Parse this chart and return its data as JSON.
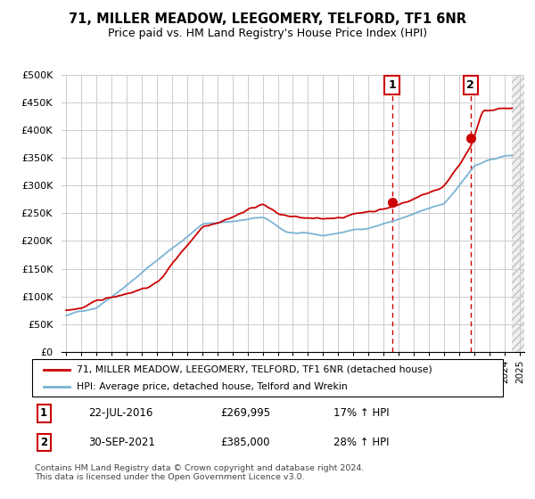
{
  "title": "71, MILLER MEADOW, LEEGOMERY, TELFORD, TF1 6NR",
  "subtitle": "Price paid vs. HM Land Registry's House Price Index (HPI)",
  "ylabel_ticks": [
    "£0",
    "£50K",
    "£100K",
    "£150K",
    "£200K",
    "£250K",
    "£300K",
    "£350K",
    "£400K",
    "£450K",
    "£500K"
  ],
  "ytick_values": [
    0,
    50000,
    100000,
    150000,
    200000,
    250000,
    300000,
    350000,
    400000,
    450000,
    500000
  ],
  "xlim_start": 1994.7,
  "xlim_end": 2025.3,
  "ylim": [
    0,
    500000
  ],
  "sale1": {
    "date_num": 2016.55,
    "price": 269995,
    "label": "1",
    "text": "22-JUL-2016",
    "pct": "17% ↑ HPI"
  },
  "sale2": {
    "date_num": 2021.75,
    "price": 385000,
    "label": "2",
    "text": "30-SEP-2021",
    "pct": "28% ↑ HPI"
  },
  "legend_red": "71, MILLER MEADOW, LEEGOMERY, TELFORD, TF1 6NR (detached house)",
  "legend_blue": "HPI: Average price, detached house, Telford and Wrekin",
  "footer": "Contains HM Land Registry data © Crown copyright and database right 2024.\nThis data is licensed under the Open Government Licence v3.0.",
  "red_color": "#cc0000",
  "blue_color": "#7ab3d4",
  "background_color": "#ffffff",
  "grid_color": "#cccccc"
}
